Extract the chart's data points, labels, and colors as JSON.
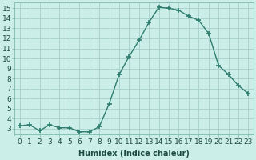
{
  "x": [
    0,
    1,
    2,
    3,
    4,
    5,
    6,
    7,
    8,
    9,
    10,
    11,
    12,
    13,
    14,
    15,
    16,
    17,
    18,
    19,
    20,
    21,
    22,
    23
  ],
  "y": [
    3.3,
    3.4,
    2.8,
    3.4,
    3.1,
    3.1,
    2.7,
    2.7,
    3.2,
    5.5,
    8.4,
    10.2,
    11.8,
    13.6,
    15.1,
    15.0,
    14.8,
    14.2,
    13.8,
    12.5,
    9.3,
    8.4,
    7.3,
    6.5
  ],
  "line_color": "#2e7d6e",
  "marker": "+",
  "marker_size": 4,
  "bg_color": "#cceee8",
  "grid_color": "#aad4cc",
  "xlabel": "Humidex (Indice chaleur)",
  "xlim": [
    -0.5,
    23.5
  ],
  "ylim": [
    2.4,
    15.6
  ],
  "yticks": [
    3,
    4,
    5,
    6,
    7,
    8,
    9,
    10,
    11,
    12,
    13,
    14,
    15
  ],
  "xticks": [
    0,
    1,
    2,
    3,
    4,
    5,
    6,
    7,
    8,
    9,
    10,
    11,
    12,
    13,
    14,
    15,
    16,
    17,
    18,
    19,
    20,
    21,
    22,
    23
  ],
  "xlabel_fontsize": 7,
  "tick_fontsize": 6.5,
  "line_width": 1.0,
  "marker_linewidth": 1.2
}
